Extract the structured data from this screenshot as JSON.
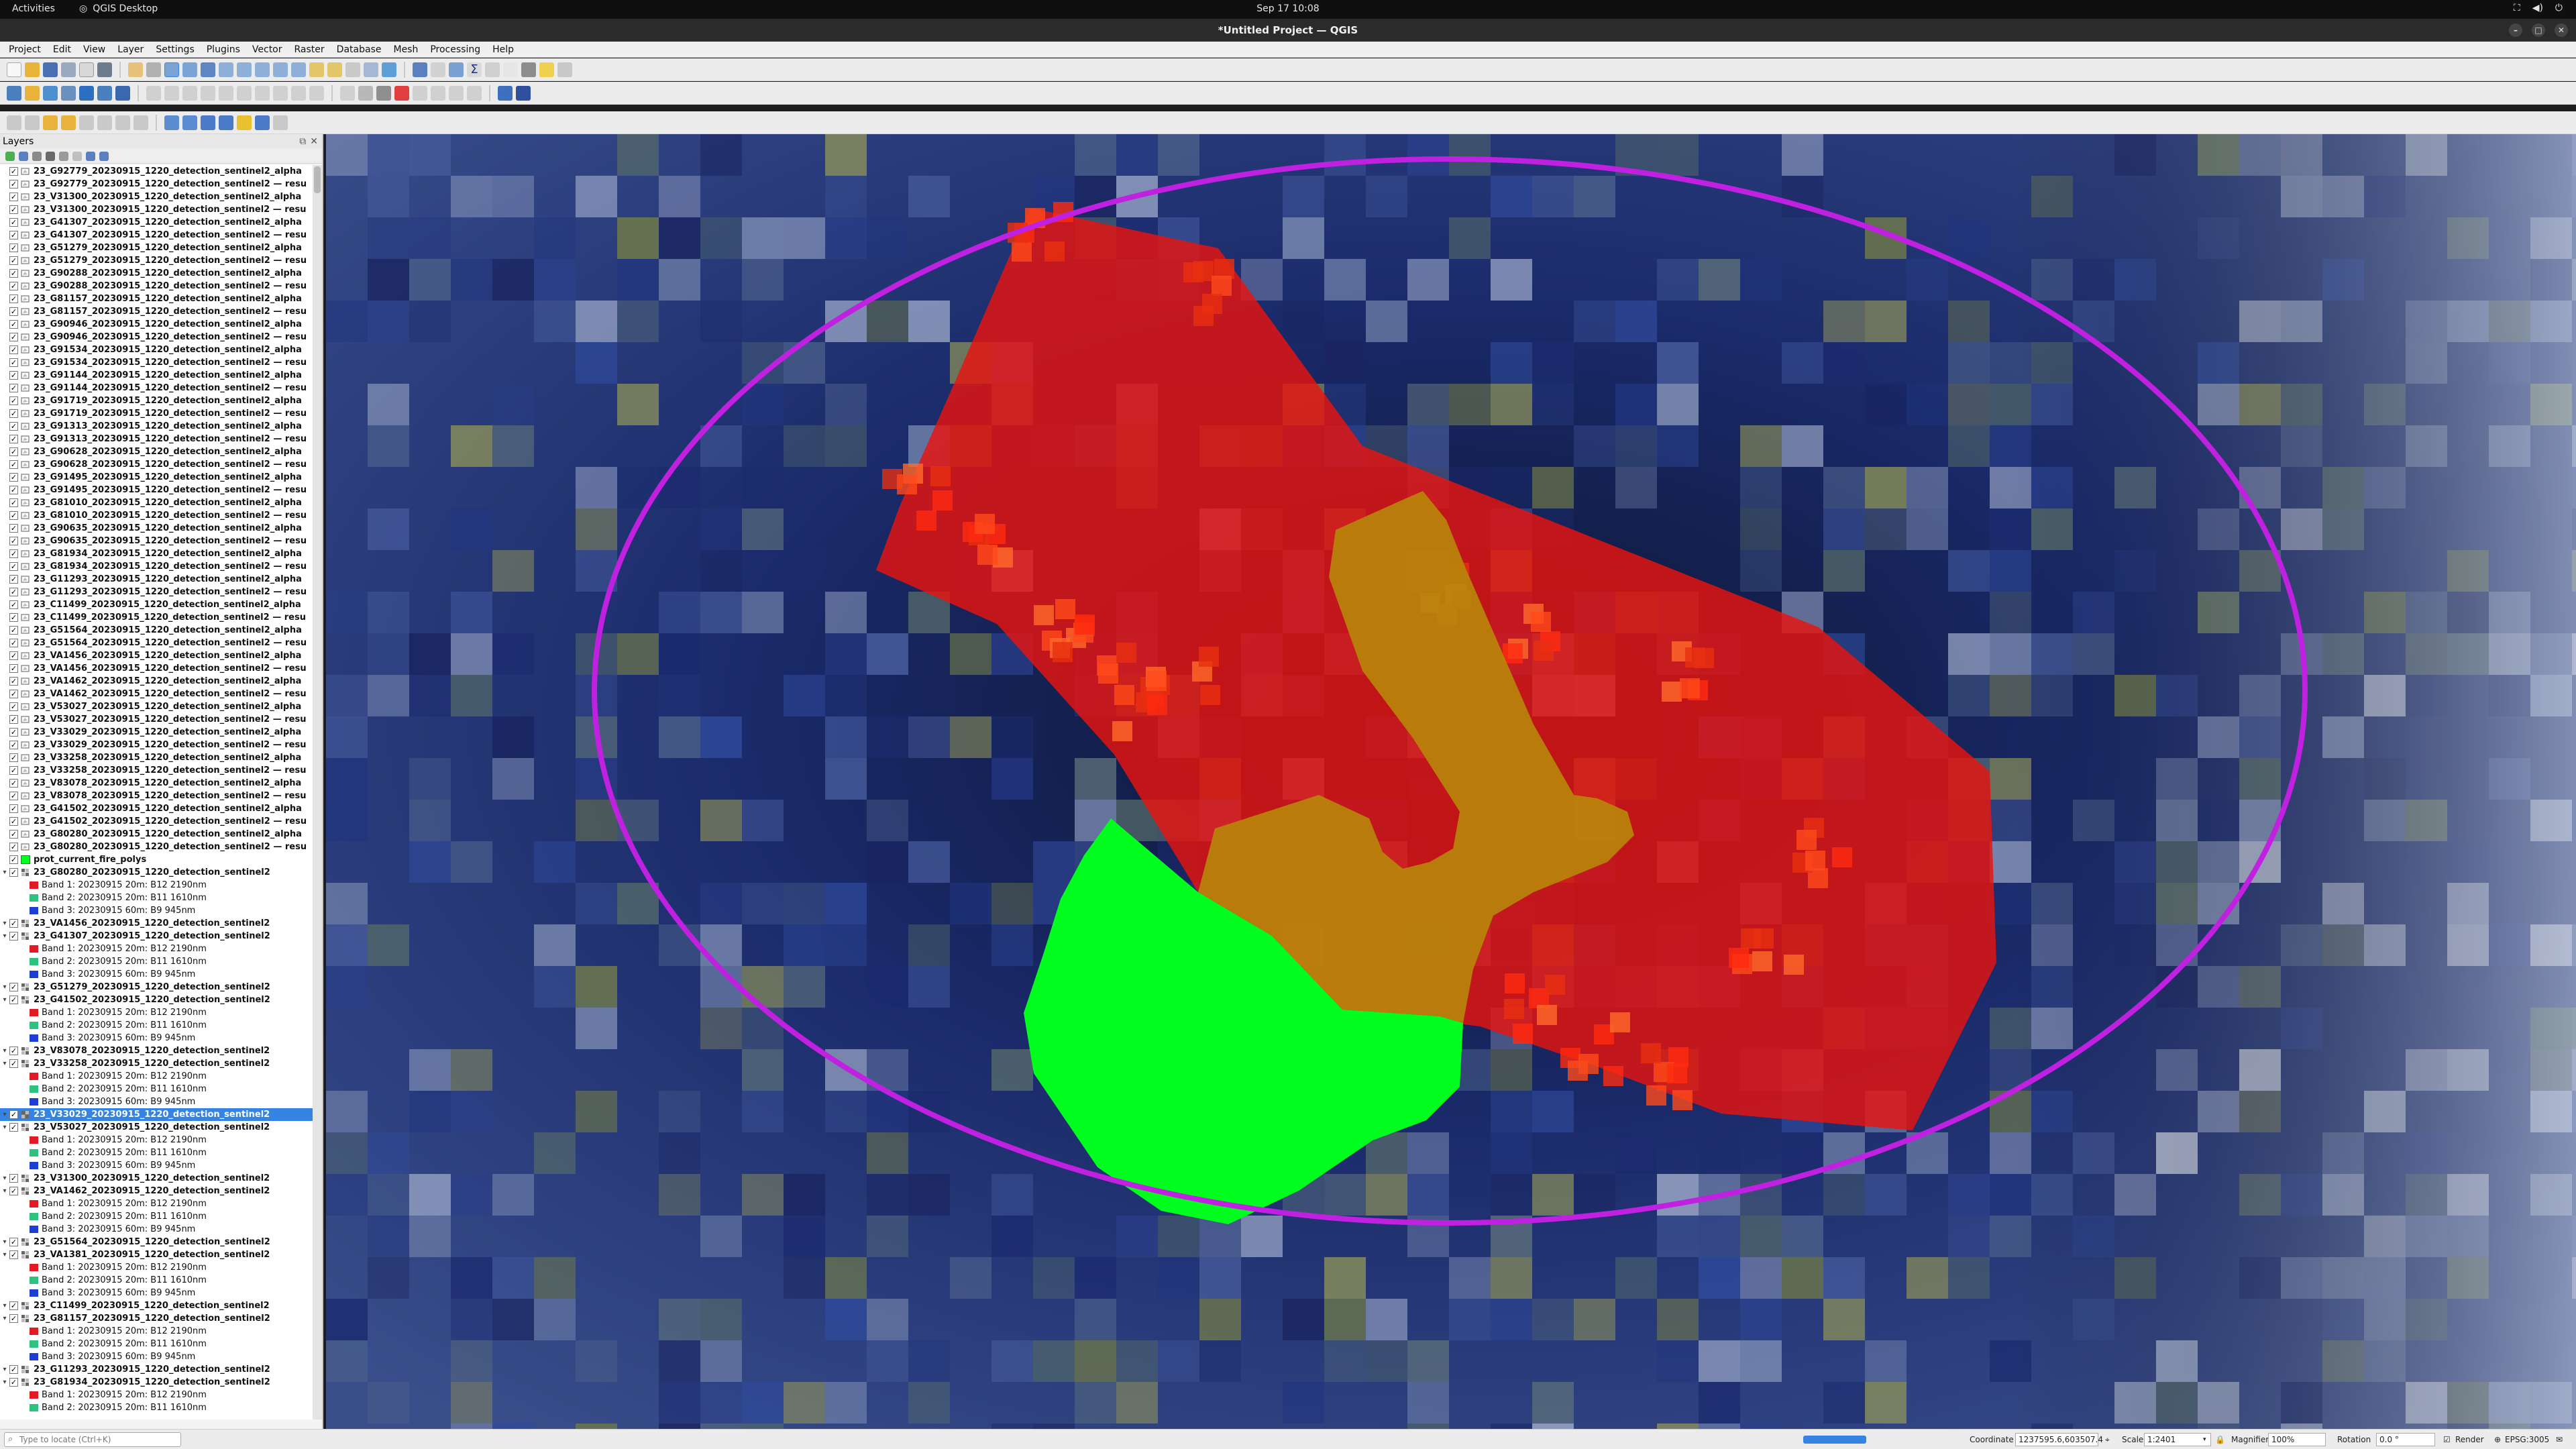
{
  "topbar": {
    "activities": "Activities",
    "app_name": "QGIS Desktop",
    "clock": "Sep 17  10:08"
  },
  "window": {
    "title": "*Untitled Project — QGIS"
  },
  "menu": [
    "Project",
    "Edit",
    "View",
    "Layer",
    "Settings",
    "Plugins",
    "Vector",
    "Raster",
    "Database",
    "Mesh",
    "Processing",
    "Help"
  ],
  "layers_panel": {
    "title": "Layers"
  },
  "layer_rows": [
    {
      "t": "23_G92779_20230915_1220_detection_sentinel2_alpha",
      "k": "v"
    },
    {
      "t": "23_G92779_20230915_1220_detection_sentinel2 — resu",
      "k": "v"
    },
    {
      "t": "23_V31300_20230915_1220_detection_sentinel2_alpha",
      "k": "v"
    },
    {
      "t": "23_V31300_20230915_1220_detection_sentinel2 — resu",
      "k": "v"
    },
    {
      "t": "23_G41307_20230915_1220_detection_sentinel2_alpha",
      "k": "v"
    },
    {
      "t": "23_G41307_20230915_1220_detection_sentinel2 — resu",
      "k": "v"
    },
    {
      "t": "23_G51279_20230915_1220_detection_sentinel2_alpha",
      "k": "v"
    },
    {
      "t": "23_G51279_20230915_1220_detection_sentinel2 — resu",
      "k": "v"
    },
    {
      "t": "23_G90288_20230915_1220_detection_sentinel2_alpha",
      "k": "v"
    },
    {
      "t": "23_G90288_20230915_1220_detection_sentinel2 — resu",
      "k": "v"
    },
    {
      "t": "23_G81157_20230915_1220_detection_sentinel2_alpha",
      "k": "v"
    },
    {
      "t": "23_G81157_20230915_1220_detection_sentinel2 — resu",
      "k": "v"
    },
    {
      "t": "23_G90946_20230915_1220_detection_sentinel2_alpha",
      "k": "v"
    },
    {
      "t": "23_G90946_20230915_1220_detection_sentinel2 — resu",
      "k": "v"
    },
    {
      "t": "23_G91534_20230915_1220_detection_sentinel2_alpha",
      "k": "v"
    },
    {
      "t": "23_G91534_20230915_1220_detection_sentinel2 — resu",
      "k": "v"
    },
    {
      "t": "23_G91144_20230915_1220_detection_sentinel2_alpha",
      "k": "v"
    },
    {
      "t": "23_G91144_20230915_1220_detection_sentinel2 — resu",
      "k": "v"
    },
    {
      "t": "23_G91719_20230915_1220_detection_sentinel2_alpha",
      "k": "v"
    },
    {
      "t": "23_G91719_20230915_1220_detection_sentinel2 — resu",
      "k": "v"
    },
    {
      "t": "23_G91313_20230915_1220_detection_sentinel2_alpha",
      "k": "v"
    },
    {
      "t": "23_G91313_20230915_1220_detection_sentinel2 — resu",
      "k": "v"
    },
    {
      "t": "23_G90628_20230915_1220_detection_sentinel2_alpha",
      "k": "v"
    },
    {
      "t": "23_G90628_20230915_1220_detection_sentinel2 — resu",
      "k": "v"
    },
    {
      "t": "23_G91495_20230915_1220_detection_sentinel2_alpha",
      "k": "v"
    },
    {
      "t": "23_G91495_20230915_1220_detection_sentinel2 — resu",
      "k": "v"
    },
    {
      "t": "23_G81010_20230915_1220_detection_sentinel2_alpha",
      "k": "v"
    },
    {
      "t": "23_G81010_20230915_1220_detection_sentinel2 — resu",
      "k": "v"
    },
    {
      "t": "23_G90635_20230915_1220_detection_sentinel2_alpha",
      "k": "v"
    },
    {
      "t": "23_G90635_20230915_1220_detection_sentinel2 — resu",
      "k": "v"
    },
    {
      "t": "23_G81934_20230915_1220_detection_sentinel2_alpha",
      "k": "v"
    },
    {
      "t": "23_G81934_20230915_1220_detection_sentinel2 — resu",
      "k": "v"
    },
    {
      "t": "23_G11293_20230915_1220_detection_sentinel2_alpha",
      "k": "v"
    },
    {
      "t": "23_G11293_20230915_1220_detection_sentinel2 — resu",
      "k": "v"
    },
    {
      "t": "23_C11499_20230915_1220_detection_sentinel2_alpha",
      "k": "v"
    },
    {
      "t": "23_C11499_20230915_1220_detection_sentinel2 — resu",
      "k": "v"
    },
    {
      "t": "23_G51564_20230915_1220_detection_sentinel2_alpha",
      "k": "v"
    },
    {
      "t": "23_G51564_20230915_1220_detection_sentinel2 — resu",
      "k": "v"
    },
    {
      "t": "23_VA1456_20230915_1220_detection_sentinel2_alpha",
      "k": "v"
    },
    {
      "t": "23_VA1456_20230915_1220_detection_sentinel2 — resu",
      "k": "v"
    },
    {
      "t": "23_VA1462_20230915_1220_detection_sentinel2_alpha",
      "k": "v"
    },
    {
      "t": "23_VA1462_20230915_1220_detection_sentinel2 — resu",
      "k": "v"
    },
    {
      "t": "23_V53027_20230915_1220_detection_sentinel2_alpha",
      "k": "v"
    },
    {
      "t": "23_V53027_20230915_1220_detection_sentinel2 — resu",
      "k": "v"
    },
    {
      "t": "23_V33029_20230915_1220_detection_sentinel2_alpha",
      "k": "v"
    },
    {
      "t": "23_V33029_20230915_1220_detection_sentinel2 — resu",
      "k": "v"
    },
    {
      "t": "23_V33258_20230915_1220_detection_sentinel2_alpha",
      "k": "v"
    },
    {
      "t": "23_V33258_20230915_1220_detection_sentinel2 — resu",
      "k": "v"
    },
    {
      "t": "23_V83078_20230915_1220_detection_sentinel2_alpha",
      "k": "v"
    },
    {
      "t": "23_V83078_20230915_1220_detection_sentinel2 — resu",
      "k": "v"
    },
    {
      "t": "23_G41502_20230915_1220_detection_sentinel2_alpha",
      "k": "v"
    },
    {
      "t": "23_G41502_20230915_1220_detection_sentinel2 — resu",
      "k": "v"
    },
    {
      "t": "23_G80280_20230915_1220_detection_sentinel2_alpha",
      "k": "v"
    },
    {
      "t": "23_G80280_20230915_1220_detection_sentinel2 — resu",
      "k": "v"
    },
    {
      "t": "prot_current_fire_polys",
      "k": "p"
    },
    {
      "t": "23_G80280_20230915_1220_detection_sentinel2",
      "k": "r"
    },
    {
      "t": "Band 1: 20230915 20m: B12 2190nm",
      "k": "b1"
    },
    {
      "t": "Band 2: 20230915 20m: B11 1610nm",
      "k": "b2"
    },
    {
      "t": "Band 3: 20230915 60m: B9 945nm",
      "k": "b3"
    },
    {
      "t": "23_VA1456_20230915_1220_detection_sentinel2",
      "k": "r"
    },
    {
      "t": "23_G41307_20230915_1220_detection_sentinel2",
      "k": "r"
    },
    {
      "t": "Band 1: 20230915 20m: B12 2190nm",
      "k": "b1"
    },
    {
      "t": "Band 2: 20230915 20m: B11 1610nm",
      "k": "b2"
    },
    {
      "t": "Band 3: 20230915 60m: B9 945nm",
      "k": "b3"
    },
    {
      "t": "23_G51279_20230915_1220_detection_sentinel2",
      "k": "r"
    },
    {
      "t": "23_G41502_20230915_1220_detection_sentinel2",
      "k": "r"
    },
    {
      "t": "Band 1: 20230915 20m: B12 2190nm",
      "k": "b1"
    },
    {
      "t": "Band 2: 20230915 20m: B11 1610nm",
      "k": "b2"
    },
    {
      "t": "Band 3: 20230915 60m: B9 945nm",
      "k": "b3"
    },
    {
      "t": "23_V83078_20230915_1220_detection_sentinel2",
      "k": "r"
    },
    {
      "t": "23_V33258_20230915_1220_detection_sentinel2",
      "k": "r"
    },
    {
      "t": "Band 1: 20230915 20m: B12 2190nm",
      "k": "b1"
    },
    {
      "t": "Band 2: 20230915 20m: B11 1610nm",
      "k": "b2"
    },
    {
      "t": "Band 3: 20230915 60m: B9 945nm",
      "k": "b3"
    },
    {
      "t": "23_V33029_20230915_1220_detection_sentinel2",
      "k": "r",
      "sel": true
    },
    {
      "t": "23_V53027_20230915_1220_detection_sentinel2",
      "k": "r"
    },
    {
      "t": "Band 1: 20230915 20m: B12 2190nm",
      "k": "b1"
    },
    {
      "t": "Band 2: 20230915 20m: B11 1610nm",
      "k": "b2"
    },
    {
      "t": "Band 3: 20230915 60m: B9 945nm",
      "k": "b3"
    },
    {
      "t": "23_V31300_20230915_1220_detection_sentinel2",
      "k": "r"
    },
    {
      "t": "23_VA1462_20230915_1220_detection_sentinel2",
      "k": "r"
    },
    {
      "t": "Band 1: 20230915 20m: B12 2190nm",
      "k": "b1"
    },
    {
      "t": "Band 2: 20230915 20m: B11 1610nm",
      "k": "b2"
    },
    {
      "t": "Band 3: 20230915 60m: B9 945nm",
      "k": "b3"
    },
    {
      "t": "23_G51564_20230915_1220_detection_sentinel2",
      "k": "r"
    },
    {
      "t": "23_VA1381_20230915_1220_detection_sentinel2",
      "k": "r"
    },
    {
      "t": "Band 1: 20230915 20m: B12 2190nm",
      "k": "b1"
    },
    {
      "t": "Band 2: 20230915 20m: B11 1610nm",
      "k": "b2"
    },
    {
      "t": "Band 3: 20230915 60m: B9 945nm",
      "k": "b3"
    },
    {
      "t": "23_C11499_20230915_1220_detection_sentinel2",
      "k": "r"
    },
    {
      "t": "23_G81157_20230915_1220_detection_sentinel2",
      "k": "r"
    },
    {
      "t": "Band 1: 20230915 20m: B12 2190nm",
      "k": "b1"
    },
    {
      "t": "Band 2: 20230915 20m: B11 1610nm",
      "k": "b2"
    },
    {
      "t": "Band 3: 20230915 60m: B9 945nm",
      "k": "b3"
    },
    {
      "t": "23_G11293_20230915_1220_detection_sentinel2",
      "k": "r"
    },
    {
      "t": "23_G81934_20230915_1220_detection_sentinel2",
      "k": "r"
    },
    {
      "t": "Band 1: 20230915 20m: B12 2190nm",
      "k": "b1"
    },
    {
      "t": "Band 2: 20230915 20m: B11 1610nm",
      "k": "b2"
    }
  ],
  "band_colors": {
    "b1": "#e01b24",
    "b2": "#2ec27e",
    "b3": "#1c3fd1"
  },
  "map_colors": {
    "fire_polygon": "#e8140f",
    "overlap_polygon": "#b8860b",
    "new_polygon": "#00ff1e",
    "highlight_ellipse": "#c020e0"
  },
  "status": {
    "locator_placeholder": "Type to locate (Ctrl+K)",
    "coordinate_label": "Coordinate",
    "coordinate_value": "1237595.6,603507.4",
    "scale_label": "Scale",
    "scale_value": "1:2401",
    "magnifier_label": "Magnifier",
    "magnifier_value": "100%",
    "rotation_label": "Rotation",
    "rotation_value": "0.0 °",
    "render_label": "Render",
    "crs": "EPSG:3005"
  }
}
